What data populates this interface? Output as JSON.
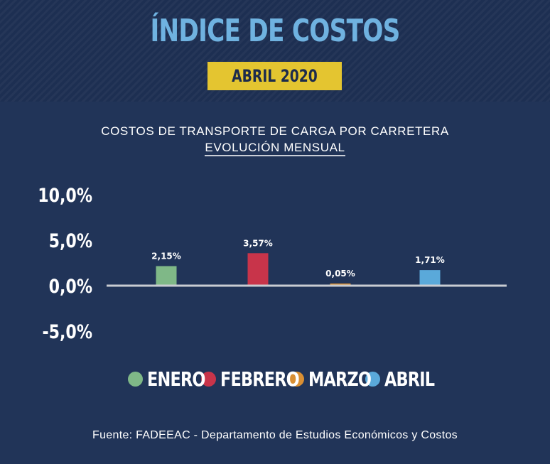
{
  "header": {
    "title": "ÍNDICE DE COSTOS",
    "badge": "ABRIL 2020"
  },
  "chart_data": {
    "type": "bar",
    "title": "COSTOS DE TRANSPORTE DE CARGA POR CARRETERA",
    "subtitle": "EVOLUCIÓN MENSUAL",
    "categories": [
      "ENERO",
      "FEBRERO",
      "MARZO",
      "ABRIL"
    ],
    "values": [
      2.15,
      3.57,
      0.05,
      1.71
    ],
    "value_labels": [
      "2,15%",
      "3,57%",
      "0,05%",
      "1,71%"
    ],
    "colors": [
      "#7fb887",
      "#c8344a",
      "#d98f33",
      "#5aa9da"
    ],
    "yticks": [
      10,
      5,
      0,
      -5
    ],
    "ytick_labels": [
      "10,0%",
      "5,0%",
      "0,0%",
      "-5,0%"
    ],
    "ylim": [
      -5,
      10
    ],
    "grid": false,
    "legend_position": "bottom"
  },
  "source": "Fuente: FADEEAC - Departamento de Estudios Económicos y Costos"
}
